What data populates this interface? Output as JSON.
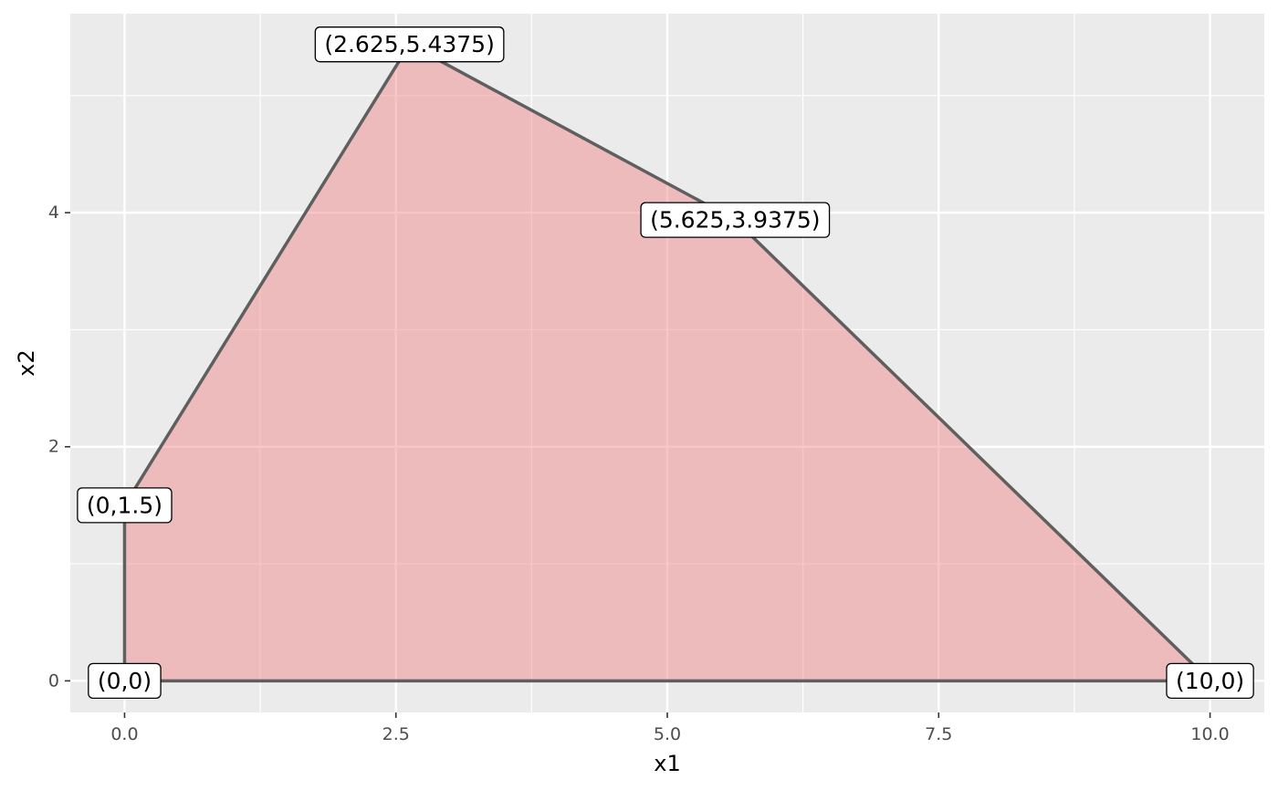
{
  "chart_data": {
    "type": "area",
    "title": "",
    "xlabel": "x1",
    "ylabel": "x2",
    "xlim": [
      -0.5,
      10.5
    ],
    "ylim": [
      -0.27,
      5.7
    ],
    "x_ticks": [
      0,
      2.5,
      5,
      7.5,
      10
    ],
    "x_tick_labels": [
      "0.0",
      "2.5",
      "5.0",
      "7.5",
      "10.0"
    ],
    "y_ticks": [
      0,
      2,
      4
    ],
    "y_tick_labels": [
      "0",
      "2",
      "4"
    ],
    "grid": true,
    "polygon": [
      {
        "x": 0,
        "y": 0
      },
      {
        "x": 0,
        "y": 1.5
      },
      {
        "x": 2.625,
        "y": 5.4375
      },
      {
        "x": 5.625,
        "y": 3.9375
      },
      {
        "x": 10,
        "y": 0
      }
    ],
    "point_labels": [
      {
        "x": 0,
        "y": 0,
        "text": "(0,0)"
      },
      {
        "x": 0,
        "y": 1.5,
        "text": "(0,1.5)"
      },
      {
        "x": 2.625,
        "y": 5.4375,
        "text": "(2.625,5.4375)"
      },
      {
        "x": 5.625,
        "y": 3.9375,
        "text": "(5.625,3.9375)"
      },
      {
        "x": 10,
        "y": 0,
        "text": "(10,0)"
      }
    ],
    "fill_color": "#f08080",
    "line_color": "#5f5f5f",
    "panel_color": "#ebebeb"
  }
}
